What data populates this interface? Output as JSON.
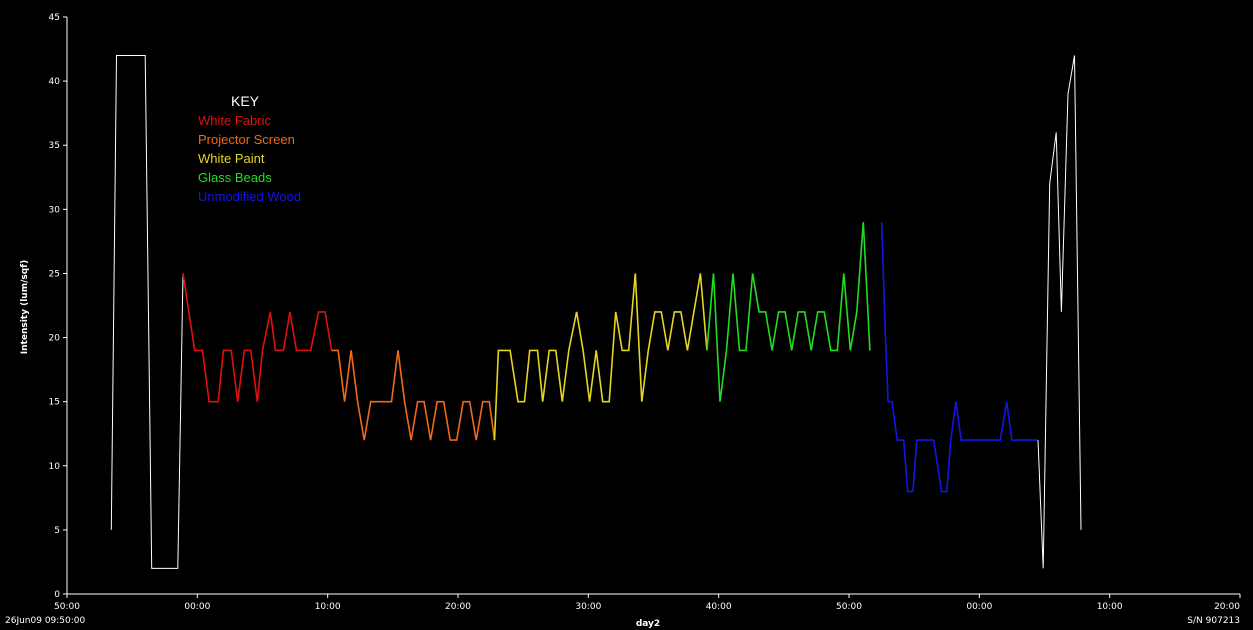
{
  "chart_data": {
    "type": "line",
    "title": "",
    "xlabel": "day2",
    "ylabel": "Intensity (lum/sqf)",
    "footer_left": "26Jun09 09:50:00",
    "footer_right": "S/N 907213",
    "x_tick_labels": [
      "50:00",
      "00:00",
      "10:00",
      "20:00",
      "30:00",
      "40:00",
      "50:00",
      "00:00",
      "10:00",
      "20:00"
    ],
    "x_range_minutes": [
      0,
      90
    ],
    "y_ticks": [
      0,
      5,
      10,
      15,
      20,
      25,
      30,
      35,
      40,
      45
    ],
    "ylim": [
      0,
      45
    ],
    "grid": false,
    "colors": {
      "background": "#000000",
      "axis": "#ffffff",
      "White Fabric": "#e01010",
      "Projector Screen": "#f06a18",
      "White Paint": "#e6d620",
      "Glass Beads": "#22dd22",
      "Unmodified Wood": "#1414e6",
      "unlabeled": "#ffffff"
    },
    "legend": {
      "title": "KEY",
      "placement": "top-left",
      "entries": [
        "White Fabric",
        "Projector Screen",
        "White Paint",
        "Glass Beads",
        "Unmodified Wood"
      ]
    },
    "series": [
      {
        "name": "",
        "color_key": "unlabeled",
        "x": [
          3.4,
          3.8,
          6.0,
          6.5,
          8.5,
          8.9
        ],
        "y": [
          5,
          42,
          42,
          2,
          2,
          25
        ]
      },
      {
        "name": "White Fabric",
        "color_key": "White Fabric",
        "x": [
          8.9,
          9.8,
          10.4,
          10.9,
          11.6,
          12.0,
          12.6,
          13.1,
          13.6,
          14.1,
          14.6,
          15.0,
          15.6,
          16.0,
          16.6,
          17.1,
          17.6,
          18.1,
          18.7,
          19.3,
          19.8,
          20.3
        ],
        "y": [
          25,
          19,
          19,
          15,
          15,
          19,
          19,
          15,
          19,
          19,
          15,
          19,
          22,
          19,
          19,
          22,
          19,
          19,
          19,
          22,
          22,
          19
        ]
      },
      {
        "name": "Projector Screen",
        "color_key": "Projector Screen",
        "x": [
          20.3,
          20.8,
          21.3,
          21.8,
          22.3,
          22.8,
          23.3,
          23.8,
          24.4,
          24.9,
          25.4,
          25.9,
          26.4,
          26.9,
          27.4,
          27.9,
          28.4,
          28.9,
          29.4,
          29.9,
          30.4,
          30.9,
          31.4,
          31.9,
          32.4,
          32.8
        ],
        "y": [
          19,
          19,
          15,
          19,
          15,
          12,
          15,
          15,
          15,
          15,
          19,
          15,
          12,
          15,
          15,
          12,
          15,
          15,
          12,
          12,
          15,
          15,
          12,
          15,
          15,
          12
        ]
      },
      {
        "name": "White Paint",
        "color_key": "White Paint",
        "x": [
          32.8,
          33.1,
          34.0,
          34.6,
          35.1,
          35.5,
          36.1,
          36.5,
          37.0,
          37.5,
          38.0,
          38.5,
          39.1,
          39.6,
          40.1,
          40.6,
          41.1,
          41.6,
          42.1,
          42.6,
          43.1,
          43.6,
          44.1,
          44.6,
          45.1,
          45.6,
          46.1,
          46.6,
          47.1,
          47.6,
          48.1,
          48.6,
          49.1
        ],
        "y": [
          12,
          19,
          19,
          15,
          15,
          19,
          19,
          15,
          19,
          19,
          15,
          19,
          22,
          19,
          15,
          19,
          15,
          15,
          22,
          19,
          19,
          25,
          15,
          19,
          22,
          22,
          19,
          22,
          22,
          19,
          22,
          25,
          19
        ]
      },
      {
        "name": "Glass Beads",
        "color_key": "Glass Beads",
        "x": [
          49.1,
          49.6,
          50.1,
          50.6,
          51.1,
          51.6,
          52.1,
          52.6,
          53.1,
          53.6,
          54.1,
          54.6,
          55.1,
          55.6,
          56.1,
          56.6,
          57.1,
          57.6,
          58.1,
          58.6,
          59.1,
          59.6,
          60.1,
          60.6,
          61.1,
          61.6
        ],
        "y": [
          19,
          25,
          15,
          19,
          25,
          19,
          19,
          25,
          22,
          22,
          19,
          22,
          22,
          19,
          22,
          22,
          19,
          22,
          22,
          19,
          19,
          25,
          19,
          22,
          29,
          19
        ]
      },
      {
        "name": "Unmodified Wood",
        "color_key": "Unmodified Wood",
        "x": [
          62.5,
          62.8,
          63.0,
          63.3,
          63.7,
          64.2,
          64.5,
          64.9,
          65.2,
          65.6,
          66.0,
          66.5,
          67.1,
          67.5,
          67.8,
          68.2,
          68.6,
          69.1,
          69.5,
          70.0,
          70.6,
          71.1,
          71.6,
          72.1,
          72.5,
          73.0,
          73.5,
          74.1,
          74.5
        ],
        "y": [
          29,
          20,
          15,
          15,
          12,
          12,
          8,
          8,
          12,
          12,
          12,
          12,
          8,
          8,
          12,
          15,
          12,
          12,
          12,
          12,
          12,
          12,
          12,
          15,
          12,
          12,
          12,
          12,
          12
        ]
      },
      {
        "name": "",
        "color_key": "unlabeled",
        "x": [
          74.5,
          74.9,
          75.4,
          75.9,
          76.3,
          76.8,
          77.3,
          77.8
        ],
        "y": [
          12,
          2,
          32,
          36,
          22,
          39,
          42,
          5
        ]
      }
    ]
  }
}
